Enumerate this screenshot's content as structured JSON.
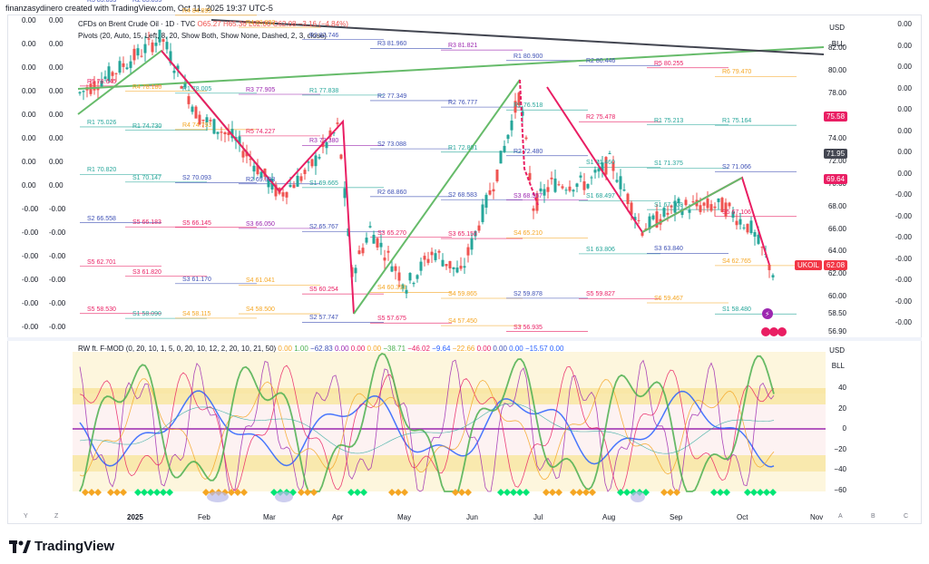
{
  "screenshot_header": "finanzasydinero created with TradingView.com, Oct 11, 2025 19:37 UTC-5",
  "main_pane": {
    "symbol_line_prefix": "CFDs on Brent Crude Oil · 1D · TVC",
    "ohlc": {
      "o": "O65.27",
      "h": "H65.36",
      "l": "L62.00",
      "c": "C62.08",
      "chg": "−3.16 (−4.84%)"
    },
    "pivots_legend": "Pivots (20, Auto, 15, Left, 8, 20, Show Both, Show None, Dashed, 2, 3, close)",
    "currency": "USD",
    "unit": "BLL",
    "right_axis": [
      "82.00",
      "80.00",
      "78.00",
      "76.00",
      "74.00",
      "72.00",
      "70.00",
      "68.00",
      "66.00",
      "64.00",
      "62.00",
      "60.00",
      "58.50",
      "56.90"
    ],
    "right_axis_far": [
      "0.00",
      "0.00",
      "0.00",
      "0.00",
      "0.00",
      "0.00",
      "0.00",
      "0.00",
      "-0.00",
      "-0.00",
      "-0.00",
      "-0.00",
      "-0.00",
      "-0.00",
      "-0.00"
    ],
    "left_axis": [
      "0.00",
      "0.00",
      "0.00",
      "0.00",
      "0.00",
      "0.00",
      "0.00",
      "0.00",
      "-0.00",
      "-0.00",
      "-0.00",
      "-0.00",
      "-0.00",
      "-0.00"
    ],
    "price_tags": [
      {
        "label": "75.58",
        "color": "#e91e63"
      },
      {
        "label": "71.95",
        "color": "#434651"
      },
      {
        "label": "69.64",
        "color": "#e91e63"
      },
      {
        "label": "62.08",
        "color": "#f23645"
      }
    ],
    "ukoil_tag": "UKOIL",
    "pivot_labels": [
      {
        "t": "R3 85.833",
        "c": "#3f51b5"
      },
      {
        "t": "R2 85.855",
        "c": "#3f51b5"
      },
      {
        "t": "R4 84.895",
        "c": "#f5a623"
      },
      {
        "t": "R4 83.830",
        "c": "#f5a623"
      },
      {
        "t": "R2 82.746",
        "c": "#3f51b5"
      },
      {
        "t": "R3 81.960",
        "c": "#3f51b5"
      },
      {
        "t": "R3 81.821",
        "c": "#9c27b0"
      },
      {
        "t": "R1 80.900",
        "c": "#3f51b5"
      },
      {
        "t": "R2 80.446",
        "c": "#3f51b5"
      },
      {
        "t": "R5 80.255",
        "c": "#e91e63"
      },
      {
        "t": "R6 79.470",
        "c": "#f5a623"
      },
      {
        "t": "R5 78.645",
        "c": "#e91e63"
      },
      {
        "t": "R4 78.180",
        "c": "#f5a623"
      },
      {
        "t": "R1 78.005",
        "c": "#26a69a"
      },
      {
        "t": "R3 77.905",
        "c": "#9c27b0"
      },
      {
        "t": "R1 77.838",
        "c": "#26a69a"
      },
      {
        "t": "R2 77.349",
        "c": "#3f51b5"
      },
      {
        "t": "R2 76.777",
        "c": "#3f51b5"
      },
      {
        "t": "R1 76.518",
        "c": "#26a69a"
      },
      {
        "t": "R2 75.478",
        "c": "#e91e63"
      },
      {
        "t": "R1 75.213",
        "c": "#26a69a"
      },
      {
        "t": "R1 75.164",
        "c": "#26a69a"
      },
      {
        "t": "R1 75.026",
        "c": "#26a69a"
      },
      {
        "t": "R1 74.730",
        "c": "#26a69a"
      },
      {
        "t": "R4 74.793",
        "c": "#f5a623"
      },
      {
        "t": "R5 74.227",
        "c": "#e91e63"
      },
      {
        "t": "R3 73.380",
        "c": "#9c27b0"
      },
      {
        "t": "S2 73.088",
        "c": "#3f51b5"
      },
      {
        "t": "R1 72.801",
        "c": "#26a69a"
      },
      {
        "t": "R2 72.480",
        "c": "#3f51b5"
      },
      {
        "t": "S1 71.460",
        "c": "#26a69a"
      },
      {
        "t": "S1 71.375",
        "c": "#26a69a"
      },
      {
        "t": "S2 71.066",
        "c": "#3f51b5"
      },
      {
        "t": "R1 70.820",
        "c": "#26a69a"
      },
      {
        "t": "S1 70.147",
        "c": "#26a69a"
      },
      {
        "t": "S2 70.093",
        "c": "#3f51b5"
      },
      {
        "t": "R2 69.993",
        "c": "#3f51b5"
      },
      {
        "t": "S1 69.665",
        "c": "#26a69a"
      },
      {
        "t": "R2 68.860",
        "c": "#3f51b5"
      },
      {
        "t": "S2 68.583",
        "c": "#3f51b5"
      },
      {
        "t": "S3 68.557",
        "c": "#9c27b0"
      },
      {
        "t": "S1 68.497",
        "c": "#26a69a"
      },
      {
        "t": "S1 67.708",
        "c": "#26a69a"
      },
      {
        "t": "S5 67.106",
        "c": "#e91e63"
      },
      {
        "t": "S2 66.558",
        "c": "#3f51b5"
      },
      {
        "t": "S5 66.183",
        "c": "#e91e63"
      },
      {
        "t": "S5 66.145",
        "c": "#e91e63"
      },
      {
        "t": "S3 66.050",
        "c": "#9c27b0"
      },
      {
        "t": "S2 65.767",
        "c": "#3f51b5"
      },
      {
        "t": "S3 65.270",
        "c": "#e91e63"
      },
      {
        "t": "S3 65.155",
        "c": "#e91e63"
      },
      {
        "t": "S4 65.210",
        "c": "#f5a623"
      },
      {
        "t": "S1 63.806",
        "c": "#26a69a"
      },
      {
        "t": "S3 63.840",
        "c": "#3f51b5"
      },
      {
        "t": "S4 62.765",
        "c": "#f5a623"
      },
      {
        "t": "S5 62.701",
        "c": "#e91e63"
      },
      {
        "t": "S3 61.820",
        "c": "#e91e63"
      },
      {
        "t": "S3 61.170",
        "c": "#3f51b5"
      },
      {
        "t": "S4 61.041",
        "c": "#f5a623"
      },
      {
        "t": "S5 60.254",
        "c": "#e91e63"
      },
      {
        "t": "S4 60.393",
        "c": "#f5a623"
      },
      {
        "t": "S4 59.865",
        "c": "#f5a623"
      },
      {
        "t": "S2 59.878",
        "c": "#3f51b5"
      },
      {
        "t": "S5 59.827",
        "c": "#e91e63"
      },
      {
        "t": "S6 59.467",
        "c": "#f5a623"
      },
      {
        "t": "S1 58.480",
        "c": "#26a69a"
      },
      {
        "t": "S5 58.530",
        "c": "#e91e63"
      },
      {
        "t": "S1 58.090",
        "c": "#26a69a"
      },
      {
        "t": "S4 58.115",
        "c": "#f5a623"
      },
      {
        "t": "S4 58.500",
        "c": "#f5a623"
      },
      {
        "t": "S2 57.747",
        "c": "#3f51b5"
      },
      {
        "t": "S5 57.675",
        "c": "#e91e63"
      },
      {
        "t": "S4 57.450",
        "c": "#f5a623"
      },
      {
        "t": "S3 56.935",
        "c": "#e91e63"
      }
    ]
  },
  "oscillator_pane": {
    "legend_title": "RW ft. F-MOD (0, 20, 10, 1, 5, 0, 20, 10, 12, 2, 20, 10, 21, 50)",
    "legend_values": [
      {
        "v": "0.00",
        "c": "#f5a623"
      },
      {
        "v": "1.00",
        "c": "#4caf50"
      },
      {
        "v": "−62.83",
        "c": "#3f51b5"
      },
      {
        "v": "0.00",
        "c": "#9c27b0"
      },
      {
        "v": "0.00",
        "c": "#e91e63"
      },
      {
        "v": "0.00",
        "c": "#f5a623"
      },
      {
        "v": "−38.71",
        "c": "#4caf50"
      },
      {
        "v": "−46.02",
        "c": "#e91e63"
      },
      {
        "v": "−9.64",
        "c": "#2962ff"
      },
      {
        "v": "−22.66",
        "c": "#f5a623"
      },
      {
        "v": "0.00",
        "c": "#e91e63"
      },
      {
        "v": "0.00",
        "c": "#3f51b5"
      },
      {
        "v": "0.00",
        "c": "#2962ff"
      },
      {
        "v": "−15.57",
        "c": "#2962ff"
      },
      {
        "v": "0.00",
        "c": "#2962ff"
      }
    ],
    "currency": "USD",
    "unit": "BLL",
    "right_axis": [
      "40",
      "20",
      "0",
      "−20",
      "−40",
      "−60"
    ]
  },
  "time_axis": [
    "2025",
    "Feb",
    "Mar",
    "Apr",
    "May",
    "Jun",
    "Jul",
    "Aug",
    "Sep",
    "Oct",
    "Nov"
  ],
  "corner_buttons": {
    "y": "Y",
    "z": "Z",
    "a": "A",
    "b": "B",
    "c": "C"
  },
  "brand": "TradingView",
  "colors": {
    "up": "#26a69a",
    "down": "#ef5350",
    "trend_pink": "#e91e63",
    "trend_green": "#66bb6a",
    "trend_black": "#131722",
    "band_yellow": "#f7e7a6"
  },
  "chart_data": {
    "type": "candlestick",
    "x": [
      "2025-01",
      "2025-02",
      "2025-03",
      "2025-04",
      "2025-05",
      "2025-06",
      "2025-07",
      "2025-08",
      "2025-09",
      "2025-10"
    ],
    "close_approx": [
      80.5,
      74.8,
      71.0,
      63.0,
      62.5,
      67.5,
      70.0,
      67.0,
      67.0,
      62.08
    ],
    "ylim": [
      56.9,
      84.0
    ]
  }
}
